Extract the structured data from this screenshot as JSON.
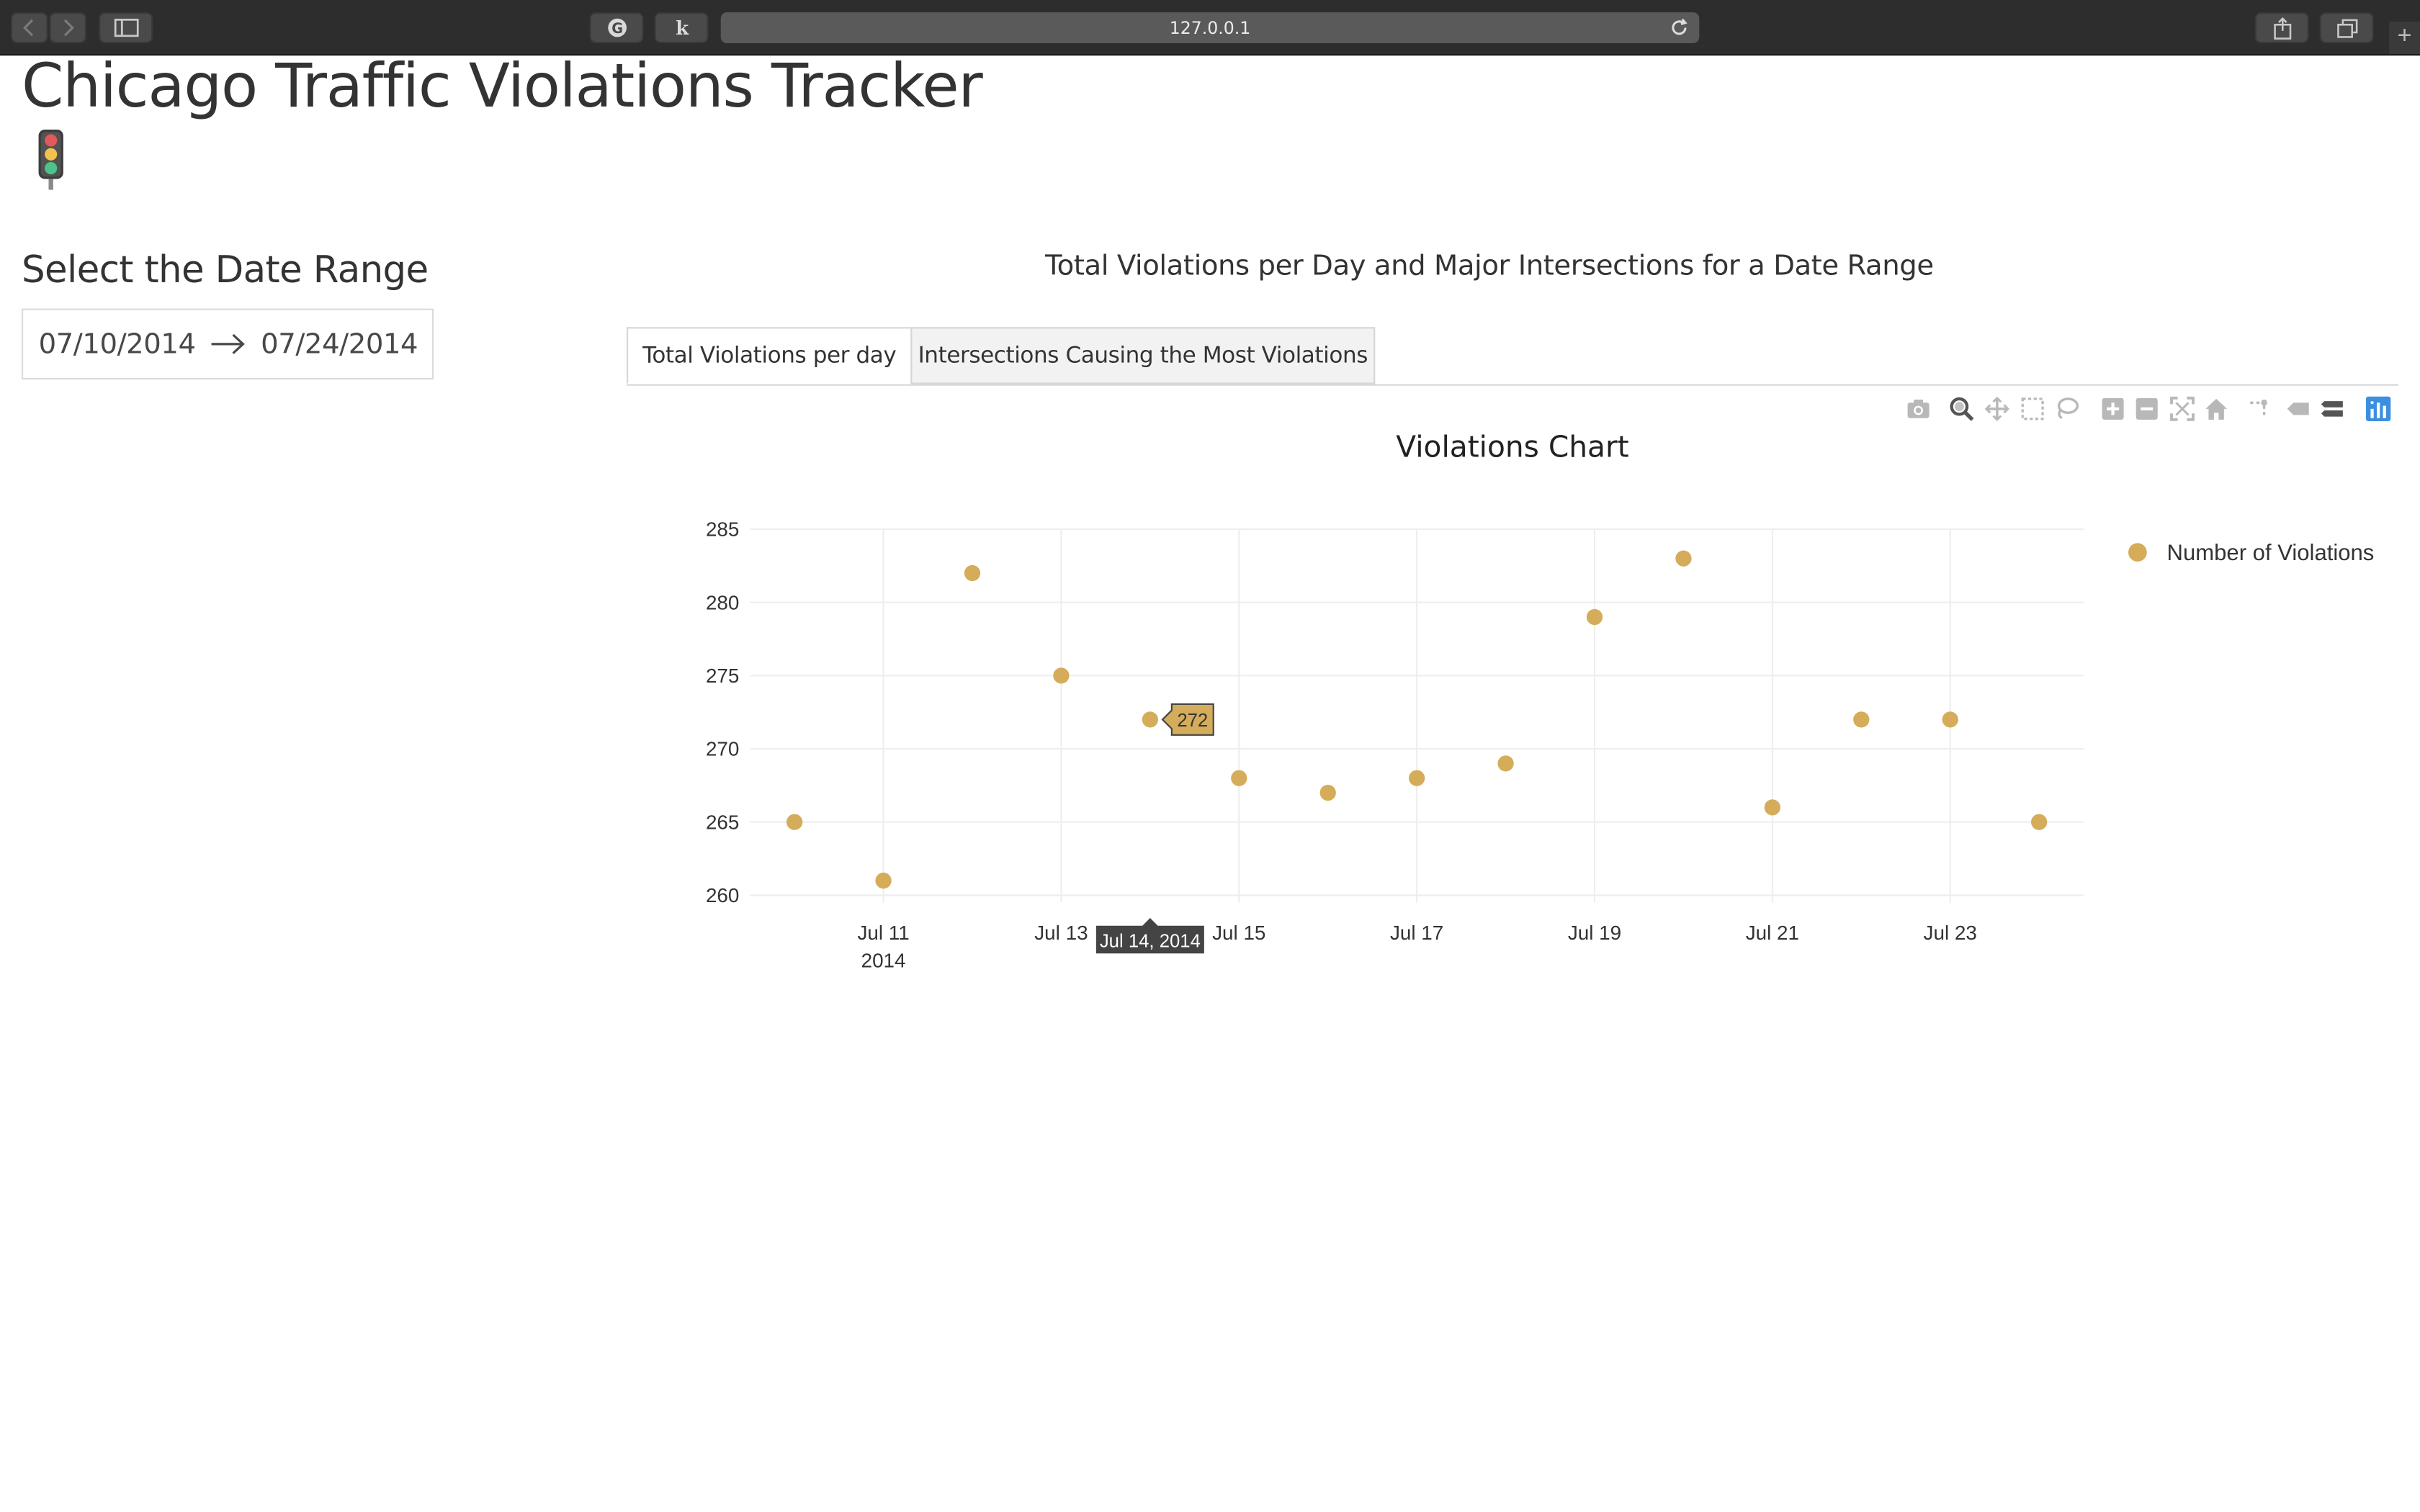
{
  "browser": {
    "url": "127.0.0.1"
  },
  "page": {
    "title": "Chicago Traffic Violations Tracker",
    "title_emoji_icon": "traffic-light-icon"
  },
  "sidebar": {
    "heading": "Select the Date Range",
    "start_date": "07/10/2014",
    "end_date": "07/24/2014"
  },
  "main": {
    "title": "Total Violations per Day and Major Intersections for a Date Range",
    "tabs": [
      {
        "label": "Total Violations per day",
        "selected": true
      },
      {
        "label": "Intersections Causing the Most Violations",
        "selected": false
      }
    ],
    "modebar_icons": [
      "camera-icon",
      "zoom-icon",
      "pan-icon",
      "box-select-icon",
      "lasso-icon",
      "zoom-in-icon",
      "zoom-out-icon",
      "autoscale-icon",
      "reset-axes-icon",
      "spike-lines-icon",
      "hover-closest-icon",
      "hover-compare-icon",
      "plotly-logo-icon"
    ]
  },
  "colors": {
    "marker": "#D4AC5A",
    "hover_x_bg": "#444444",
    "grid": "#EEEEEE",
    "zeroline_axis": "#444444",
    "accent_blue": "#3C8FE0"
  },
  "chart_data": {
    "type": "scatter",
    "title": "Violations Chart",
    "xlabel": "",
    "ylabel": "",
    "x_type": "date",
    "x": [
      "2014-07-10",
      "2014-07-11",
      "2014-07-12",
      "2014-07-13",
      "2014-07-14",
      "2014-07-15",
      "2014-07-16",
      "2014-07-17",
      "2014-07-18",
      "2014-07-19",
      "2014-07-20",
      "2014-07-21",
      "2014-07-22",
      "2014-07-23",
      "2014-07-24"
    ],
    "series": [
      {
        "name": "Number of Violations",
        "values": [
          265,
          261,
          282,
          275,
          272,
          268,
          267,
          268,
          269,
          279,
          283,
          266,
          272,
          272,
          265
        ]
      }
    ],
    "ylim": [
      259.5,
      285
    ],
    "xlim": [
      "2014-07-10",
      "2014-07-24"
    ],
    "y_ticks": [
      260,
      265,
      270,
      275,
      280,
      285
    ],
    "x_ticks": [
      "Jul 11",
      "Jul 13",
      "Jul 15",
      "Jul 17",
      "Jul 19",
      "Jul 21",
      "Jul 23"
    ],
    "x_tick_year": "2014",
    "grid": true,
    "legend": "top-right",
    "hover": {
      "x_label": "Jul 14, 2014",
      "y_label": "272",
      "point_index": 4
    }
  }
}
